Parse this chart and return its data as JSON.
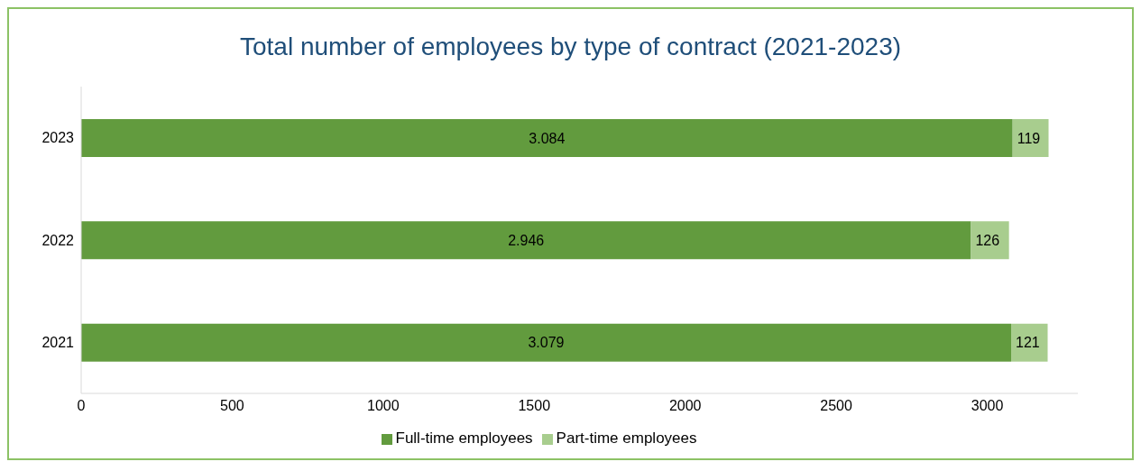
{
  "chart_data": {
    "type": "bar",
    "orientation": "horizontal",
    "stacked": true,
    "title": "Total number of employees by type of contract (2021-2023)",
    "categories": [
      "2023",
      "2022",
      "2021"
    ],
    "series": [
      {
        "name": "Full-time employees",
        "color": "#629b3e",
        "values": [
          3084,
          2946,
          3079
        ],
        "value_labels": [
          "3.084",
          "2.946",
          "3.079"
        ]
      },
      {
        "name": "Part-time employees",
        "color": "#a8cd8e",
        "values": [
          119,
          126,
          121
        ],
        "value_labels": [
          "119",
          "126",
          "121"
        ]
      }
    ],
    "xlim": [
      0,
      3300
    ],
    "xticks": [
      0,
      500,
      1000,
      1500,
      2000,
      2500,
      3000
    ],
    "legend": "bottom"
  }
}
